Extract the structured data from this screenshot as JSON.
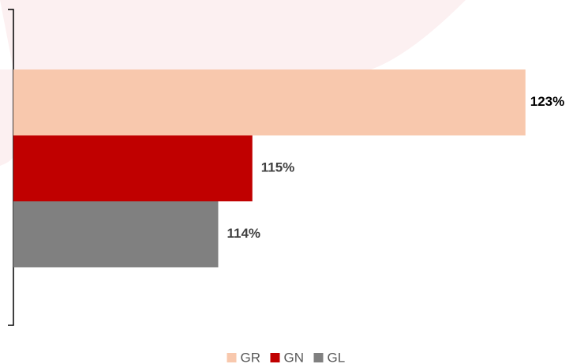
{
  "chart_data": {
    "type": "bar",
    "orientation": "horizontal",
    "series": [
      {
        "name": "GR",
        "color": "#f8c8ad",
        "values": [
          123
        ],
        "value_labels": [
          "123%"
        ]
      },
      {
        "name": "GN",
        "color": "#c00000",
        "values": [
          115
        ],
        "value_labels": [
          "115%"
        ]
      },
      {
        "name": "GL",
        "color": "#808080",
        "values": [
          114
        ],
        "value_labels": [
          "114%"
        ]
      }
    ],
    "xlim": [
      108,
      124
    ],
    "legend": "bottom"
  }
}
